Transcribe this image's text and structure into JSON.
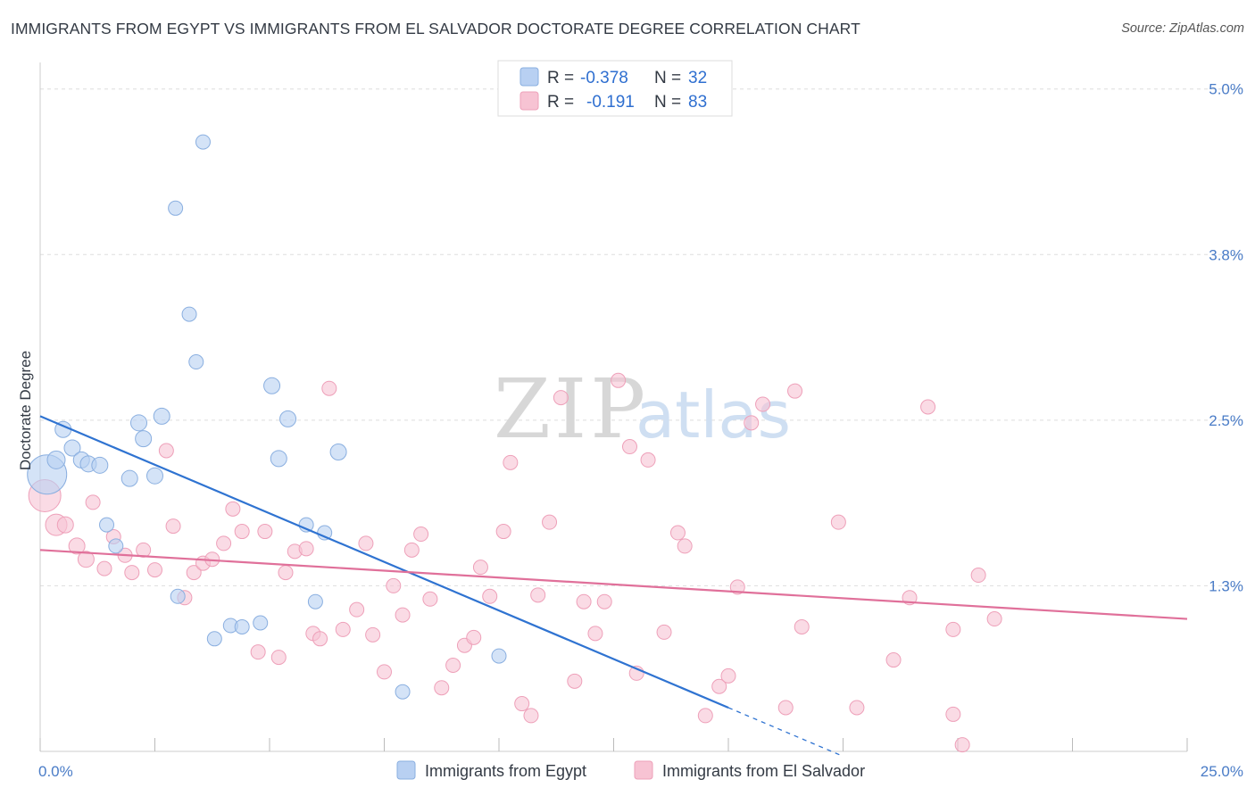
{
  "title": "IMMIGRANTS FROM EGYPT VS IMMIGRANTS FROM EL SALVADOR DOCTORATE DEGREE CORRELATION CHART",
  "source": "Source: ZipAtlas.com",
  "watermark": {
    "zip": "ZIP",
    "atlas": "atlas"
  },
  "colors": {
    "egypt_fill": "#b8d0f2",
    "egypt_stroke": "#8aafe0",
    "egypt_line": "#2f73d1",
    "salvador_fill": "#f7c3d3",
    "salvador_stroke": "#eea0b9",
    "salvador_line": "#e0709a",
    "tick": "#4a7cc7",
    "grid": "#dddddd"
  },
  "legend": {
    "egypt": {
      "r_label": "R = ",
      "r_value": "-0.378",
      "n_label": "N = ",
      "n_value": "32"
    },
    "salvador": {
      "r_label": "R = ",
      "r_value": "-0.191",
      "n_label": "N = ",
      "n_value": "83"
    }
  },
  "chart_data": {
    "type": "scatter",
    "title": "IMMIGRANTS FROM EGYPT VS IMMIGRANTS FROM EL SALVADOR DOCTORATE DEGREE CORRELATION CHART",
    "xlabel": "",
    "ylabel": "Doctorate Degree",
    "xlim": [
      0,
      25
    ],
    "ylim": [
      0,
      5.2
    ],
    "x_tick_labels": [
      "0.0%",
      "25.0%"
    ],
    "y_ticks": [
      {
        "value": 1.25,
        "label": "1.3%"
      },
      {
        "value": 2.5,
        "label": "2.5%"
      },
      {
        "value": 3.75,
        "label": "3.8%"
      },
      {
        "value": 5.0,
        "label": "5.0%"
      }
    ],
    "grid": true,
    "legend_position": "top-center",
    "series": [
      {
        "name": "Immigrants from Egypt",
        "color": "#b8d0f2",
        "trend": {
          "x0": 0,
          "y0": 2.53,
          "x1": 15,
          "y1": 0.33,
          "dashed_to_x": 17.5
        },
        "points": [
          [
            0.15,
            2.09,
            22
          ],
          [
            0.35,
            2.2,
            10
          ],
          [
            0.5,
            2.43,
            9
          ],
          [
            0.7,
            2.29,
            9
          ],
          [
            0.9,
            2.2,
            9
          ],
          [
            1.05,
            2.17,
            9
          ],
          [
            1.3,
            2.16,
            9
          ],
          [
            1.45,
            1.71,
            8
          ],
          [
            1.65,
            1.55,
            8
          ],
          [
            1.95,
            2.06,
            9
          ],
          [
            2.15,
            2.48,
            9
          ],
          [
            2.25,
            2.36,
            9
          ],
          [
            2.5,
            2.08,
            9
          ],
          [
            2.65,
            2.53,
            9
          ],
          [
            2.95,
            4.1,
            8
          ],
          [
            3.25,
            3.3,
            8
          ],
          [
            3.4,
            2.94,
            8
          ],
          [
            3.55,
            4.6,
            8
          ],
          [
            3.0,
            1.17,
            8
          ],
          [
            3.8,
            0.85,
            8
          ],
          [
            4.15,
            0.95,
            8
          ],
          [
            4.4,
            0.94,
            8
          ],
          [
            4.8,
            0.97,
            8
          ],
          [
            5.05,
            2.76,
            9
          ],
          [
            5.2,
            2.21,
            9
          ],
          [
            5.4,
            2.51,
            9
          ],
          [
            5.8,
            1.71,
            8
          ],
          [
            6.2,
            1.65,
            8
          ],
          [
            6.0,
            1.13,
            8
          ],
          [
            6.5,
            2.26,
            9
          ],
          [
            7.9,
            0.45,
            8
          ],
          [
            10.0,
            0.72,
            8
          ]
        ]
      },
      {
        "name": "Immigrants from El Salvador",
        "color": "#f7c3d3",
        "trend": {
          "x0": 0,
          "y0": 1.52,
          "x1": 25,
          "y1": 1.0
        },
        "points": [
          [
            0.1,
            1.93,
            18
          ],
          [
            0.35,
            1.71,
            12
          ],
          [
            0.55,
            1.71,
            9
          ],
          [
            0.8,
            1.55,
            9
          ],
          [
            1.0,
            1.45,
            9
          ],
          [
            1.15,
            1.88,
            8
          ],
          [
            1.4,
            1.38,
            8
          ],
          [
            1.6,
            1.62,
            8
          ],
          [
            1.85,
            1.48,
            8
          ],
          [
            2.0,
            1.35,
            8
          ],
          [
            2.25,
            1.52,
            8
          ],
          [
            2.5,
            1.37,
            8
          ],
          [
            2.75,
            2.27,
            8
          ],
          [
            2.9,
            1.7,
            8
          ],
          [
            3.15,
            1.16,
            8
          ],
          [
            3.35,
            1.35,
            8
          ],
          [
            3.55,
            1.42,
            8
          ],
          [
            3.75,
            1.45,
            8
          ],
          [
            4.0,
            1.57,
            8
          ],
          [
            4.2,
            1.83,
            8
          ],
          [
            4.4,
            1.66,
            8
          ],
          [
            4.75,
            0.75,
            8
          ],
          [
            4.9,
            1.66,
            8
          ],
          [
            5.2,
            0.71,
            8
          ],
          [
            5.35,
            1.35,
            8
          ],
          [
            5.55,
            1.51,
            8
          ],
          [
            5.8,
            1.53,
            8
          ],
          [
            5.95,
            0.89,
            8
          ],
          [
            6.1,
            0.85,
            8
          ],
          [
            6.3,
            2.74,
            8
          ],
          [
            6.6,
            0.92,
            8
          ],
          [
            6.9,
            1.07,
            8
          ],
          [
            7.1,
            1.57,
            8
          ],
          [
            7.25,
            0.88,
            8
          ],
          [
            7.5,
            0.6,
            8
          ],
          [
            7.7,
            1.25,
            8
          ],
          [
            7.9,
            1.03,
            8
          ],
          [
            8.1,
            1.52,
            8
          ],
          [
            8.3,
            1.64,
            8
          ],
          [
            8.5,
            1.15,
            8
          ],
          [
            8.75,
            0.48,
            8
          ],
          [
            9.0,
            0.65,
            8
          ],
          [
            9.25,
            0.8,
            8
          ],
          [
            9.45,
            0.86,
            8
          ],
          [
            9.6,
            1.39,
            8
          ],
          [
            9.8,
            1.17,
            8
          ],
          [
            10.1,
            1.66,
            8
          ],
          [
            10.25,
            2.18,
            8
          ],
          [
            10.5,
            0.36,
            8
          ],
          [
            10.7,
            0.27,
            8
          ],
          [
            10.85,
            1.18,
            8
          ],
          [
            11.1,
            1.73,
            8
          ],
          [
            11.35,
            2.67,
            8
          ],
          [
            11.65,
            0.53,
            8
          ],
          [
            11.85,
            1.13,
            8
          ],
          [
            12.1,
            0.89,
            8
          ],
          [
            12.3,
            1.13,
            8
          ],
          [
            12.6,
            2.8,
            8
          ],
          [
            12.85,
            2.3,
            8
          ],
          [
            13.0,
            0.59,
            8
          ],
          [
            13.25,
            2.2,
            8
          ],
          [
            13.6,
            0.9,
            8
          ],
          [
            13.9,
            1.65,
            8
          ],
          [
            14.05,
            1.55,
            8
          ],
          [
            14.5,
            0.27,
            8
          ],
          [
            14.8,
            0.49,
            8
          ],
          [
            15.0,
            0.57,
            8
          ],
          [
            15.2,
            1.24,
            8
          ],
          [
            15.5,
            2.48,
            8
          ],
          [
            15.75,
            2.62,
            8
          ],
          [
            16.25,
            0.33,
            8
          ],
          [
            16.45,
            2.72,
            8
          ],
          [
            16.6,
            0.94,
            8
          ],
          [
            17.4,
            1.73,
            8
          ],
          [
            17.8,
            0.33,
            8
          ],
          [
            18.6,
            0.69,
            8
          ],
          [
            18.95,
            1.16,
            8
          ],
          [
            19.35,
            2.6,
            8
          ],
          [
            19.9,
            0.92,
            8
          ],
          [
            19.9,
            0.28,
            8
          ],
          [
            20.1,
            0.05,
            8
          ],
          [
            20.45,
            1.33,
            8
          ],
          [
            20.8,
            1.0,
            8
          ]
        ]
      }
    ]
  },
  "bottom_legend": {
    "egypt_label": "Immigrants from Egypt",
    "salvador_label": "Immigrants from El Salvador"
  }
}
